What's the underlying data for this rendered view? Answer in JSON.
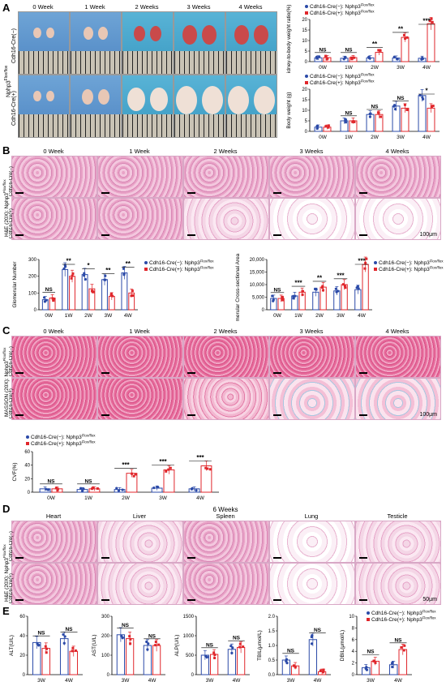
{
  "panels": {
    "A": {
      "letter": "A",
      "weeks": [
        "0 Week",
        "1 Week",
        "2 Weeks",
        "3 Weeks",
        "4 Weeks"
      ],
      "rows": [
        "Cdh16-Cre(−)",
        "Cdh16-Cre(+)"
      ],
      "group_label": "Nphp3",
      "group_sup": "Flox/flox"
    },
    "B": {
      "letter": "B",
      "weeks": [
        "0 Week",
        "1 Week",
        "2 Weeks",
        "3 Weeks",
        "4 Weeks"
      ],
      "row_top": "Cdh16-Cre(−)",
      "row_bottom": "Cdh16-Cre(+)",
      "side_label": "H&E (20X): Nphp3",
      "side_sup": "Flox/flox",
      "scale": "100μm"
    },
    "C": {
      "letter": "C",
      "weeks": [
        "0 Week",
        "1 Week",
        "2 Weeks",
        "3 Weeks",
        "4 Weeks"
      ],
      "row_top": "Cdh16-Cre(−)",
      "row_bottom": "Cdh16-Cre(+)",
      "side_label": "MASSON (20X): Nphp3",
      "side_sup": "Flox/flox",
      "scale": "100μm"
    },
    "D": {
      "letter": "D",
      "title": "6 Weeks",
      "organs": [
        "Heart",
        "Liver",
        "Spleen",
        "Lung",
        "Testicle"
      ],
      "row_top": "Cdh16-Cre(−)",
      "row_bottom": "Cdh16-Cre(+)",
      "side_label": "H&E (20X): Nphp3",
      "side_sup": "Flox/flox",
      "scale": "50μm"
    },
    "E": {
      "letter": "E"
    }
  },
  "legend": {
    "neg": "Cdh16-Cre(−): Nphp3",
    "pos": "Cdh16-Cre(+): Nphp3",
    "sup": "Flox/flox",
    "neg_color": "#2b4aa8",
    "pos_color": "#e0262b"
  },
  "chart_data": [
    {
      "id": "kidney-ratio",
      "type": "bar",
      "ylabel": "Kidney-to-body weight ratio(%)",
      "categories": [
        "0W",
        "1W",
        "2W",
        "3W",
        "4W"
      ],
      "series": [
        {
          "name": "Cdh16-Cre(−): Nphp3 Flox/flox",
          "values": [
            1.8,
            1.6,
            1.8,
            1.7,
            1.6
          ]
        },
        {
          "name": "Cdh16-Cre(+): Nphp3 Flox/flox",
          "values": [
            1.9,
            1.9,
            4.4,
            11.5,
            18
          ]
        }
      ],
      "ylim": [
        0,
        20
      ],
      "ticks": [
        0,
        5,
        10,
        15,
        20
      ],
      "significance": [
        "NS",
        "NS",
        "**",
        "**",
        "***"
      ]
    },
    {
      "id": "body-weight",
      "type": "bar",
      "ylabel": "Body weight (g)",
      "categories": [
        "0W",
        "1W",
        "2W",
        "3W",
        "4W"
      ],
      "series": [
        {
          "name": "Cdh16-Cre(−): Nphp3 Flox/flox",
          "values": [
            2,
            5,
            8,
            12,
            17
          ]
        },
        {
          "name": "Cdh16-Cre(+): Nphp3 Flox/flox",
          "values": [
            2,
            5,
            8,
            11,
            11
          ]
        }
      ],
      "ylim": [
        0,
        20
      ],
      "ticks": [
        0,
        5,
        10,
        15,
        20
      ],
      "significance": [
        "",
        "NS",
        "NS",
        "NS",
        "*"
      ]
    },
    {
      "id": "glomerular-number",
      "type": "bar",
      "ylabel": "Glomerular Number",
      "categories": [
        "0W",
        "1W",
        "2W",
        "3W",
        "4W"
      ],
      "series": [
        {
          "name": "Cdh16-Cre(−): Nphp3 Flox/flox",
          "values": [
            60,
            240,
            210,
            180,
            220
          ]
        },
        {
          "name": "Cdh16-Cre(+): Nphp3 Flox/flox",
          "values": [
            70,
            200,
            125,
            80,
            100
          ]
        }
      ],
      "ylim": [
        0,
        300
      ],
      "ticks": [
        0,
        100,
        200,
        300
      ],
      "significance": [
        "NS",
        "**",
        "*",
        "**",
        "**"
      ]
    },
    {
      "id": "glomerular-area",
      "type": "bar",
      "ylabel": "Glomerular Cross-sectional Area (μm²)",
      "categories": [
        "0W",
        "1W",
        "2W",
        "3W",
        "4W"
      ],
      "series": [
        {
          "name": "Cdh16-Cre(−): Nphp3 Flox/flox",
          "values": [
            4500,
            5500,
            7000,
            7500,
            8000
          ]
        },
        {
          "name": "Cdh16-Cre(+): Nphp3 Flox/flox",
          "values": [
            4500,
            7000,
            9000,
            10000,
            18000
          ]
        }
      ],
      "ylim": [
        0,
        20000
      ],
      "ticks": [
        "0",
        "5,000",
        "10,000",
        "15,000",
        "20,000"
      ],
      "significance": [
        "NS",
        "***",
        "**",
        "***",
        "***"
      ]
    },
    {
      "id": "cvf",
      "type": "bar",
      "ylabel": "CVF(%)",
      "categories": [
        "0W",
        "1W",
        "2W",
        "3W",
        "4W"
      ],
      "series": [
        {
          "name": "Cdh16-Cre(−): Nphp3 Flox/flox",
          "values": [
            5,
            4,
            4,
            6,
            5
          ]
        },
        {
          "name": "Cdh16-Cre(+): Nphp3 Flox/flox",
          "values": [
            5,
            5,
            28,
            33,
            39
          ]
        }
      ],
      "ylim": [
        0,
        60
      ],
      "ticks": [
        0,
        20,
        40,
        60
      ],
      "significance": [
        "NS",
        "NS",
        "***",
        "***",
        "***"
      ]
    },
    {
      "id": "alt",
      "type": "bar",
      "ylabel": "ALT(U/L)",
      "categories": [
        "3W",
        "4W"
      ],
      "series": [
        {
          "name": "Cdh16-Cre(−): Nphp3 Flox/flox",
          "values": [
            33,
            37
          ]
        },
        {
          "name": "Cdh16-Cre(+): Nphp3 Flox/flox",
          "values": [
            27,
            24
          ]
        }
      ],
      "ylim": [
        0,
        60
      ],
      "ticks": [
        0,
        20,
        40,
        60
      ],
      "significance": [
        "NS",
        "NS"
      ]
    },
    {
      "id": "ast",
      "type": "bar",
      "ylabel": "AST(U/L)",
      "categories": [
        "3W",
        "4W"
      ],
      "series": [
        {
          "name": "Cdh16-Cre(−): Nphp3 Flox/flox",
          "values": [
            205,
            150
          ]
        },
        {
          "name": "Cdh16-Cre(+): Nphp3 Flox/flox",
          "values": [
            185,
            150
          ]
        }
      ],
      "ylim": [
        0,
        300
      ],
      "ticks": [
        0,
        100,
        200,
        300
      ],
      "significance": [
        "NS",
        "NS"
      ]
    },
    {
      "id": "alp",
      "type": "bar",
      "ylabel": "ALP(U/L)",
      "categories": [
        "3W",
        "4W"
      ],
      "series": [
        {
          "name": "Cdh16-Cre(−): Nphp3 Flox/flox",
          "values": [
            500,
            650
          ]
        },
        {
          "name": "Cdh16-Cre(+): Nphp3 Flox/flox",
          "values": [
            520,
            700
          ]
        }
      ],
      "ylim": [
        0,
        1500
      ],
      "ticks": [
        0,
        500,
        1000,
        1500
      ],
      "significance": [
        "NS",
        "NS"
      ]
    },
    {
      "id": "tbil",
      "type": "bar",
      "ylabel": "TBIL(μmol/L)",
      "categories": [
        "3W",
        "4W"
      ],
      "series": [
        {
          "name": "Cdh16-Cre(−): Nphp3 Flox/flox",
          "values": [
            0.5,
            1.2
          ]
        },
        {
          "name": "Cdh16-Cre(+): Nphp3 Flox/flox",
          "values": [
            0.3,
            0.1
          ]
        }
      ],
      "ylim": [
        0,
        2.0
      ],
      "ticks": [
        "0.0",
        "0.5",
        "1.0",
        "1.5",
        "2.0"
      ],
      "significance": [
        "NS",
        "NS"
      ]
    },
    {
      "id": "dbil",
      "type": "bar",
      "ylabel": "DBIL(μmol/L)",
      "categories": [
        "3W",
        "4W"
      ],
      "series": [
        {
          "name": "Cdh16-Cre(−): Nphp3 Flox/flox",
          "values": [
            1.2,
            1.7
          ]
        },
        {
          "name": "Cdh16-Cre(+): Nphp3 Flox/flox",
          "values": [
            2.3,
            4.3
          ]
        }
      ],
      "ylim": [
        0,
        10
      ],
      "ticks": [
        0,
        2,
        4,
        6,
        8,
        10
      ],
      "significance": [
        "NS",
        "NS"
      ]
    }
  ]
}
